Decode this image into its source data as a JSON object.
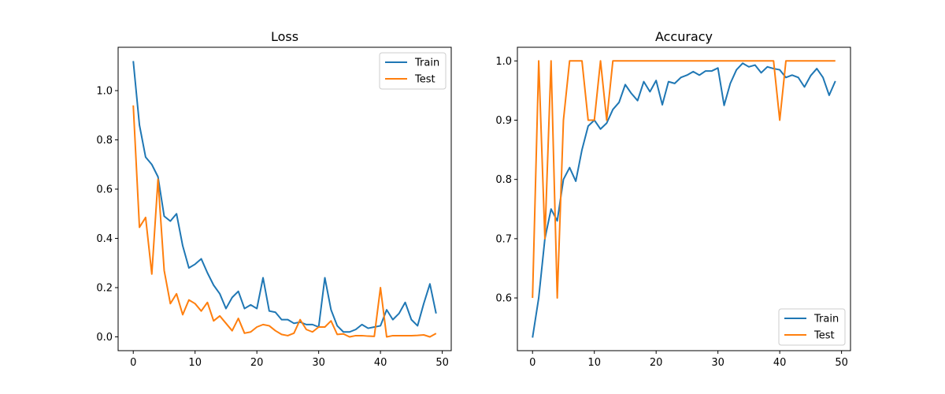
{
  "chart_data": [
    {
      "type": "line",
      "title": "Loss",
      "xlabel": "",
      "ylabel": "",
      "xlim": [
        -2.45,
        51.45
      ],
      "ylim": [
        -0.056,
        1.176
      ],
      "x_ticks": [
        0,
        10,
        20,
        30,
        40,
        50
      ],
      "y_ticks": [
        0.0,
        0.2,
        0.4,
        0.6,
        0.8,
        1.0
      ],
      "x_tick_labels": [
        "0",
        "10",
        "20",
        "30",
        "40",
        "50"
      ],
      "y_tick_labels": [
        "0.0",
        "0.2",
        "0.4",
        "0.6",
        "0.8",
        "1.0"
      ],
      "grid": false,
      "legend_position": "top-right",
      "x": [
        0,
        1,
        2,
        3,
        4,
        5,
        6,
        7,
        8,
        9,
        10,
        11,
        12,
        13,
        14,
        15,
        16,
        17,
        18,
        19,
        20,
        21,
        22,
        23,
        24,
        25,
        26,
        27,
        28,
        29,
        30,
        31,
        32,
        33,
        34,
        35,
        36,
        37,
        38,
        39,
        40,
        41,
        42,
        43,
        44,
        45,
        46,
        47,
        48,
        49
      ],
      "series": [
        {
          "name": "Train",
          "color": "#1f77b4",
          "values": [
            1.12,
            0.86,
            0.73,
            0.7,
            0.65,
            0.49,
            0.47,
            0.5,
            0.37,
            0.28,
            0.295,
            0.317,
            0.26,
            0.21,
            0.175,
            0.115,
            0.16,
            0.185,
            0.115,
            0.13,
            0.115,
            0.24,
            0.105,
            0.1,
            0.07,
            0.07,
            0.055,
            0.06,
            0.05,
            0.05,
            0.04,
            0.24,
            0.11,
            0.045,
            0.02,
            0.02,
            0.03,
            0.05,
            0.035,
            0.04,
            0.045,
            0.11,
            0.07,
            0.095,
            0.14,
            0.07,
            0.045,
            0.135,
            0.215,
            0.095
          ]
        },
        {
          "name": "Test",
          "color": "#ff7f0e",
          "values": [
            0.94,
            0.445,
            0.485,
            0.255,
            0.64,
            0.27,
            0.135,
            0.175,
            0.09,
            0.15,
            0.135,
            0.105,
            0.14,
            0.065,
            0.085,
            0.055,
            0.025,
            0.075,
            0.015,
            0.02,
            0.04,
            0.05,
            0.045,
            0.025,
            0.01,
            0.005,
            0.015,
            0.07,
            0.03,
            0.02,
            0.04,
            0.04,
            0.065,
            0.01,
            0.012,
            0.0,
            0.005,
            0.005,
            0.003,
            0.002,
            0.2,
            0.0,
            0.005,
            0.005,
            0.005,
            0.005,
            0.006,
            0.008,
            0.0,
            0.014
          ]
        }
      ]
    },
    {
      "type": "line",
      "title": "Accuracy",
      "xlabel": "",
      "ylabel": "",
      "xlim": [
        -2.45,
        51.45
      ],
      "ylim": [
        0.511,
        1.023
      ],
      "x_ticks": [
        0,
        10,
        20,
        30,
        40,
        50
      ],
      "y_ticks": [
        0.6,
        0.7,
        0.8,
        0.9,
        1.0
      ],
      "x_tick_labels": [
        "0",
        "10",
        "20",
        "30",
        "40",
        "50"
      ],
      "y_tick_labels": [
        "0.6",
        "0.7",
        "0.8",
        "0.9",
        "1.0"
      ],
      "grid": false,
      "legend_position": "bottom-right",
      "x": [
        0,
        1,
        2,
        3,
        4,
        5,
        6,
        7,
        8,
        9,
        10,
        11,
        12,
        13,
        14,
        15,
        16,
        17,
        18,
        19,
        20,
        21,
        22,
        23,
        24,
        25,
        26,
        27,
        28,
        29,
        30,
        31,
        32,
        33,
        34,
        35,
        36,
        37,
        38,
        39,
        40,
        41,
        42,
        43,
        44,
        45,
        46,
        47,
        48,
        49
      ],
      "series": [
        {
          "name": "Train",
          "color": "#1f77b4",
          "values": [
            0.533,
            0.6,
            0.7,
            0.75,
            0.73,
            0.8,
            0.82,
            0.797,
            0.85,
            0.89,
            0.9,
            0.885,
            0.895,
            0.918,
            0.93,
            0.96,
            0.945,
            0.933,
            0.965,
            0.948,
            0.967,
            0.926,
            0.965,
            0.962,
            0.972,
            0.976,
            0.982,
            0.976,
            0.983,
            0.983,
            0.988,
            0.925,
            0.962,
            0.985,
            0.996,
            0.99,
            0.993,
            0.98,
            0.99,
            0.987,
            0.985,
            0.972,
            0.976,
            0.972,
            0.956,
            0.975,
            0.987,
            0.972,
            0.942,
            0.966
          ]
        },
        {
          "name": "Test",
          "color": "#ff7f0e",
          "values": [
            0.6,
            1.0,
            0.7,
            1.0,
            0.6,
            0.9,
            1.0,
            1.0,
            1.0,
            0.9,
            0.9,
            1.0,
            0.9,
            1.0,
            1.0,
            1.0,
            1.0,
            1.0,
            1.0,
            1.0,
            1.0,
            1.0,
            1.0,
            1.0,
            1.0,
            1.0,
            1.0,
            1.0,
            1.0,
            1.0,
            1.0,
            1.0,
            1.0,
            1.0,
            1.0,
            1.0,
            1.0,
            1.0,
            1.0,
            1.0,
            0.9,
            1.0,
            1.0,
            1.0,
            1.0,
            1.0,
            1.0,
            1.0,
            1.0,
            1.0
          ]
        }
      ]
    }
  ]
}
